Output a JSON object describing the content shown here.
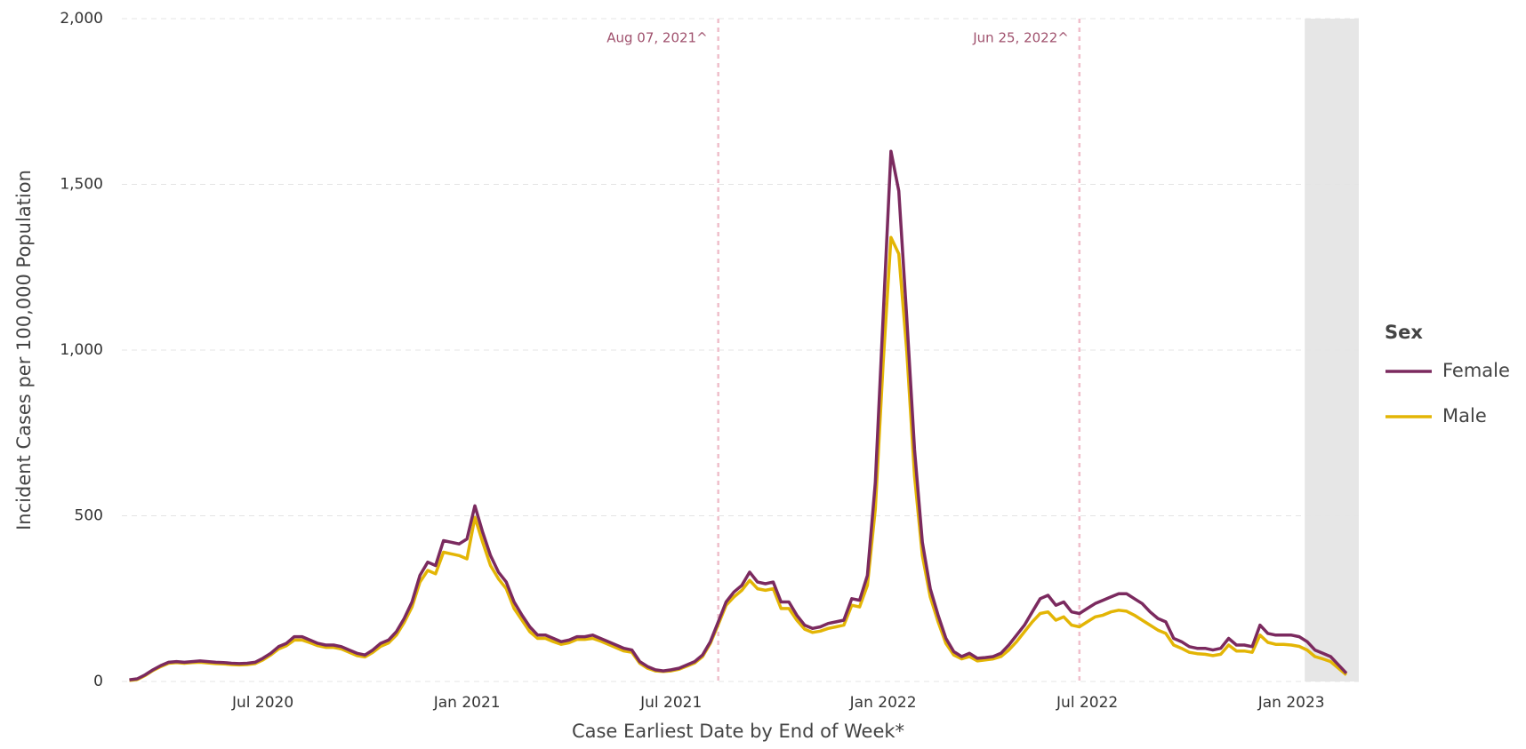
{
  "chart_data": {
    "type": "line",
    "x_label": "Case Earliest Date by End of Week*",
    "y_label": "Incident Cases per 100,000 Population",
    "legend_title": "Sex",
    "legend_position": "right",
    "grid": true,
    "ylim": [
      0,
      2000
    ],
    "yticks": [
      0,
      500,
      {
        "value": 1000,
        "label": "1,000"
      },
      {
        "value": 1500,
        "label": "1,500"
      },
      {
        "value": 2000,
        "label": "2,000"
      }
    ],
    "categories": [
      null,
      null,
      null,
      null,
      null,
      null,
      null,
      null,
      null,
      null,
      null,
      null,
      null,
      null,
      null,
      null,
      null,
      "Jul 2020",
      null,
      null,
      null,
      null,
      null,
      null,
      null,
      null,
      null,
      null,
      null,
      null,
      null,
      null,
      null,
      null,
      null,
      null,
      null,
      null,
      null,
      null,
      null,
      null,
      null,
      "Jan 2021",
      null,
      null,
      null,
      null,
      null,
      null,
      null,
      null,
      null,
      null,
      null,
      null,
      null,
      null,
      null,
      null,
      null,
      null,
      null,
      null,
      null,
      null,
      null,
      null,
      null,
      "Jul 2021",
      null,
      null,
      null,
      null,
      null,
      null,
      null,
      null,
      null,
      null,
      null,
      null,
      null,
      null,
      null,
      null,
      null,
      null,
      null,
      null,
      null,
      null,
      null,
      null,
      null,
      null,
      "Jan 2022",
      null,
      null,
      null,
      null,
      null,
      null,
      null,
      null,
      null,
      null,
      null,
      null,
      null,
      null,
      null,
      null,
      null,
      null,
      null,
      null,
      null,
      null,
      null,
      null,
      null,
      "Jul 2022",
      null,
      null,
      null,
      null,
      null,
      null,
      null,
      null,
      null,
      null,
      null,
      null,
      null,
      null,
      null,
      null,
      null,
      null,
      null,
      null,
      null,
      null,
      null,
      null,
      null,
      "Jan 2023",
      null,
      null,
      null,
      null,
      null,
      null,
      null
    ],
    "annotations": [
      {
        "text": "Aug 07, 2021^",
        "category_index": 75
      },
      {
        "text": "Jun 25, 2022^",
        "category_index": 121
      }
    ],
    "series": [
      {
        "name": "Female",
        "color": "#7b2a5f",
        "values": [
          5,
          8,
          20,
          35,
          48,
          58,
          60,
          58,
          60,
          62,
          60,
          58,
          57,
          55,
          54,
          55,
          58,
          70,
          85,
          105,
          115,
          135,
          135,
          125,
          115,
          110,
          110,
          105,
          95,
          85,
          80,
          95,
          115,
          125,
          150,
          190,
          240,
          320,
          360,
          350,
          425,
          420,
          415,
          430,
          530,
          450,
          380,
          330,
          300,
          240,
          200,
          165,
          140,
          140,
          130,
          120,
          125,
          135,
          135,
          140,
          130,
          120,
          110,
          100,
          95,
          60,
          45,
          35,
          32,
          35,
          40,
          50,
          60,
          80,
          120,
          180,
          240,
          270,
          290,
          330,
          300,
          295,
          300,
          240,
          240,
          200,
          170,
          160,
          165,
          175,
          180,
          185,
          250,
          245,
          320,
          600,
          1100,
          1600,
          1480,
          1100,
          700,
          420,
          280,
          200,
          130,
          90,
          75,
          85,
          70,
          72,
          75,
          85,
          110,
          140,
          170,
          210,
          250,
          260,
          230,
          240,
          210,
          205,
          220,
          235,
          245,
          255,
          265,
          265,
          250,
          235,
          210,
          190,
          180,
          130,
          120,
          105,
          100,
          100,
          95,
          100,
          130,
          110,
          110,
          105,
          170,
          145,
          140,
          140,
          140,
          135,
          120,
          95,
          85,
          75,
          50,
          25
        ]
      },
      {
        "name": "Male",
        "color": "#e3b505",
        "values": [
          3,
          6,
          18,
          33,
          45,
          55,
          57,
          55,
          57,
          58,
          56,
          54,
          53,
          51,
          50,
          51,
          54,
          65,
          80,
          98,
          108,
          125,
          125,
          117,
          108,
          103,
          103,
          98,
          88,
          78,
          74,
          88,
          106,
          116,
          140,
          178,
          225,
          300,
          335,
          325,
          390,
          385,
          380,
          370,
          495,
          420,
          350,
          310,
          280,
          220,
          185,
          150,
          130,
          130,
          120,
          112,
          117,
          127,
          127,
          130,
          122,
          112,
          102,
          92,
          88,
          55,
          40,
          32,
          30,
          32,
          37,
          46,
          56,
          75,
          115,
          172,
          230,
          255,
          275,
          305,
          280,
          275,
          280,
          220,
          220,
          185,
          158,
          148,
          152,
          160,
          165,
          170,
          230,
          225,
          290,
          520,
          960,
          1340,
          1290,
          1000,
          620,
          380,
          255,
          180,
          115,
          80,
          68,
          75,
          62,
          65,
          68,
          75,
          95,
          120,
          150,
          180,
          205,
          210,
          185,
          195,
          170,
          165,
          180,
          195,
          200,
          210,
          215,
          212,
          200,
          185,
          170,
          155,
          145,
          110,
          100,
          88,
          84,
          82,
          78,
          82,
          110,
          92,
          92,
          88,
          140,
          118,
          112,
          112,
          110,
          106,
          95,
          75,
          68,
          60,
          40,
          20
        ]
      }
    ]
  }
}
